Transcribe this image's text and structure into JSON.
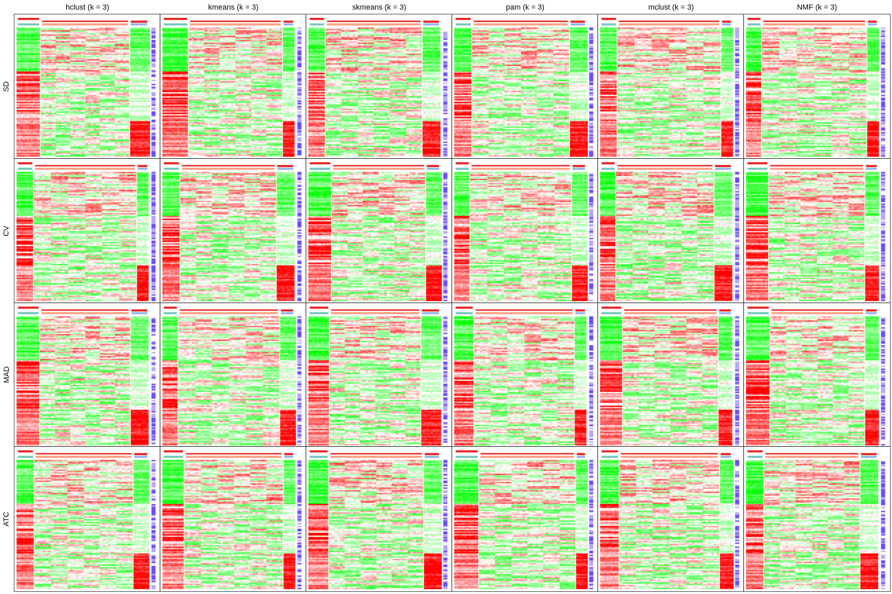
{
  "chart_data": {
    "type": "heatmap",
    "column_titles": [
      "hclust (k = 3)",
      "kmeans (k = 3)",
      "skmeans (k = 3)",
      "pam (k = 3)",
      "mclust (k = 3)",
      "NMF (k = 3)"
    ],
    "row_labels": [
      "SD",
      "CV",
      "MAD",
      "ATC"
    ],
    "colors": {
      "high": "#ff0000",
      "mid": "#ffffff",
      "low": "#00ff00",
      "class_colors": [
        "#e41a1c",
        "#ff9e80",
        "#6ec6b8",
        "#8cb4e8"
      ],
      "side_bar": [
        "#6b4cff",
        "#b6a8ff",
        "#ffffff"
      ]
    },
    "grid": "off",
    "legend": "none"
  }
}
